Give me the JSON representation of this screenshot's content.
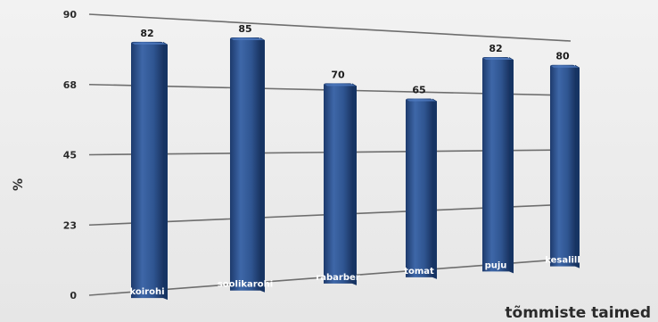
{
  "chart_data": {
    "type": "bar",
    "categories": [
      "koirohi",
      "soolikarohi",
      "rabarber",
      "tomat",
      "puju",
      "kesalill"
    ],
    "values": [
      82,
      85,
      70,
      65,
      82,
      80
    ],
    "ylabel": "%",
    "xlabel": "tõmmiste taimed",
    "ylim": [
      0,
      90
    ],
    "yticks": [
      "90",
      "68",
      "45",
      "23",
      "0"
    ],
    "grid": true,
    "colors": {
      "bar": "#2f5591",
      "bar_light": "#4f7bc0",
      "bar_dark": "#163463",
      "grid": "#6e6e6e",
      "background": "#ededed"
    }
  }
}
